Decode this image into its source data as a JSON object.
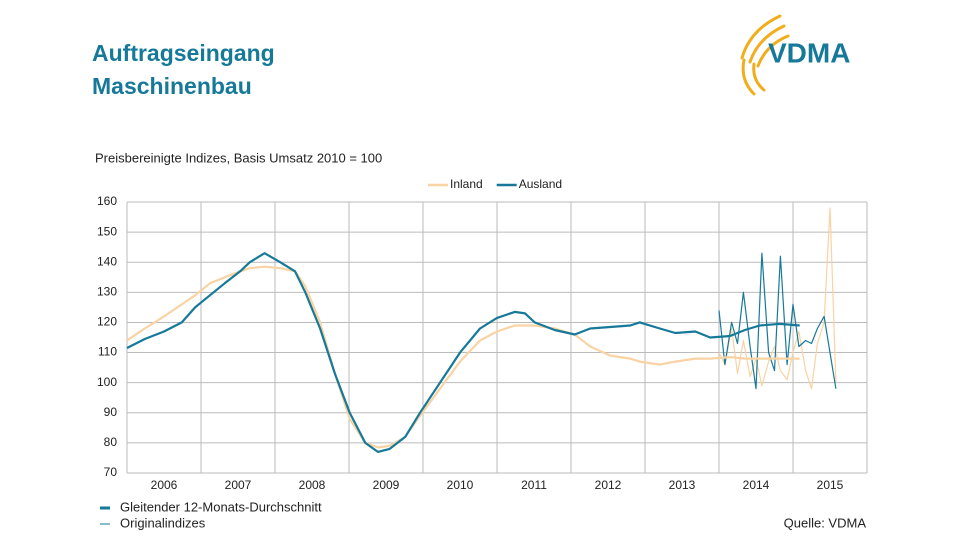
{
  "header": {
    "title_lines": [
      "Auftragseingang",
      "Maschinenbau"
    ],
    "logo": "VDMA"
  },
  "chart_data": {
    "type": "line",
    "subtitle": "Preisbereinigte Indizes, Basis Umsatz 2010 = 100",
    "categories": [
      "2006",
      "2007",
      "2008",
      "2009",
      "2010",
      "2011",
      "2012",
      "2013",
      "2014",
      "2015"
    ],
    "xlim": [
      2006,
      2016
    ],
    "xticks": [
      2006,
      2007,
      2008,
      2009,
      2010,
      2011,
      2012,
      2013,
      2014,
      2015,
      2016
    ],
    "ylim": [
      70,
      160
    ],
    "yticks": [
      70,
      80,
      90,
      100,
      110,
      120,
      130,
      140,
      150,
      160
    ],
    "grid": true,
    "x": [
      2006.0,
      2006.24,
      2006.5,
      2006.74,
      2006.92,
      2007.12,
      2007.32,
      2007.53,
      2007.66,
      2007.86,
      2008.07,
      2008.27,
      2008.41,
      2008.61,
      2008.81,
      2009.01,
      2009.22,
      2009.39,
      2009.55,
      2009.76,
      2009.96,
      2010.23,
      2010.5,
      2010.77,
      2011.0,
      2011.24,
      2011.38,
      2011.51,
      2011.78,
      2012.05,
      2012.26,
      2012.53,
      2012.8,
      2012.93,
      2013.2,
      2013.41,
      2013.68,
      2013.88,
      2014.15,
      2014.35,
      2014.55,
      2014.82,
      2015.09
    ],
    "original_x": [
      2014.0,
      2014.08,
      2014.17,
      2014.25,
      2014.33,
      2014.42,
      2014.5,
      2014.58,
      2014.67,
      2014.75,
      2014.83,
      2014.92,
      2015.0,
      2015.08,
      2015.17,
      2015.25,
      2015.33,
      2015.42,
      2015.5,
      2015.58
    ],
    "series": [
      {
        "name": "Inland",
        "color": "#f9d3a3",
        "values": [
          114,
          118,
          122,
          126,
          129,
          133,
          135,
          137,
          138,
          138.5,
          138,
          137,
          132,
          120,
          103,
          88,
          80,
          78.5,
          79,
          82,
          89,
          98,
          107,
          114,
          117,
          119,
          119,
          119,
          118,
          116,
          112,
          109,
          108,
          107,
          106,
          107,
          108,
          108,
          108.5,
          108,
          108,
          108,
          108
        ],
        "original": [
          110,
          106,
          118,
          103,
          114,
          102,
          108,
          99,
          107,
          112,
          104,
          101,
          110,
          117,
          104,
          98,
          113,
          120,
          158,
          100
        ]
      },
      {
        "name": "Ausland",
        "color": "#17799a",
        "values": [
          111.5,
          114.5,
          117,
          120,
          125,
          129,
          133,
          137,
          140,
          143,
          140,
          137,
          130,
          118,
          103,
          90,
          80,
          77,
          78,
          82,
          90,
          100,
          110,
          118,
          121.5,
          123.5,
          123,
          120,
          117.5,
          116,
          118,
          118.5,
          119,
          120,
          118,
          116.5,
          117,
          115,
          115.5,
          117.5,
          119,
          119.5,
          119
        ],
        "original": [
          124,
          106,
          120,
          113,
          130,
          112,
          98,
          143,
          110,
          104,
          142,
          106,
          126,
          112,
          114,
          113,
          118,
          122,
          110,
          98
        ]
      }
    ],
    "line_styles": [
      "Gleitender 12-Monats-Durchschnitt",
      "Originalindizes"
    ],
    "source": "Quelle: VDMA"
  }
}
